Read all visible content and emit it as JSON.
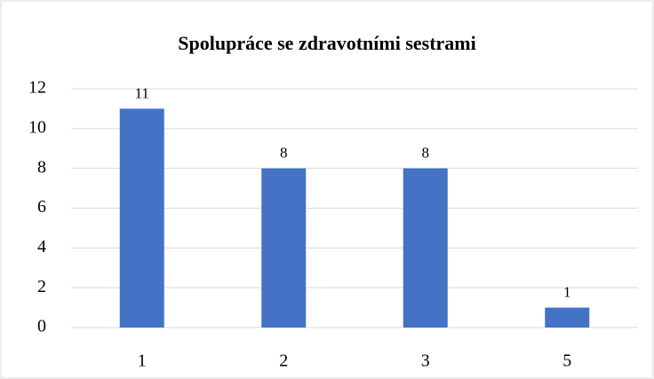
{
  "chart_data": {
    "type": "bar",
    "title": "Spolupráce se zdravotními sestrami",
    "categories": [
      "1",
      "2",
      "3",
      "5"
    ],
    "values": [
      11,
      8,
      8,
      1
    ],
    "color": "#4472c4",
    "ylim": [
      0,
      12
    ],
    "yticks": [
      0,
      2,
      4,
      6,
      8,
      10,
      12
    ],
    "grid": true,
    "data_labels": true
  }
}
